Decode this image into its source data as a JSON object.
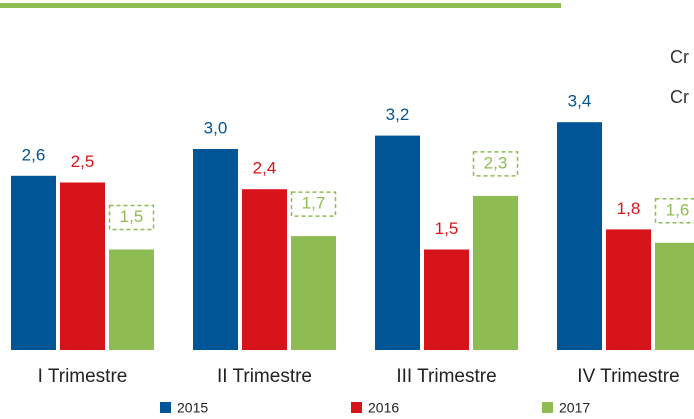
{
  "chart_data": {
    "type": "bar",
    "categories": [
      "I Trimestre",
      "II Trimestre",
      "III Trimestre",
      "IV Trimestre"
    ],
    "series": [
      {
        "name": "2015",
        "color": "#005596",
        "values": [
          2.6,
          3.0,
          3.2,
          3.4
        ],
        "value_labels": [
          "2,6",
          "3,0",
          "3,2",
          "3,4"
        ]
      },
      {
        "name": "2016",
        "color": "#d7141a",
        "values": [
          2.5,
          2.4,
          1.5,
          1.8
        ],
        "value_labels": [
          "2,5",
          "2,4",
          "1,5",
          "1,8"
        ]
      },
      {
        "name": "2017",
        "color": "#8fbc52",
        "values": [
          1.5,
          1.7,
          2.3,
          1.6
        ],
        "value_labels": [
          "1,5",
          "1,7",
          "2,3",
          "1,6"
        ]
      }
    ],
    "annotations": [
      "Cr",
      "Cr"
    ]
  }
}
